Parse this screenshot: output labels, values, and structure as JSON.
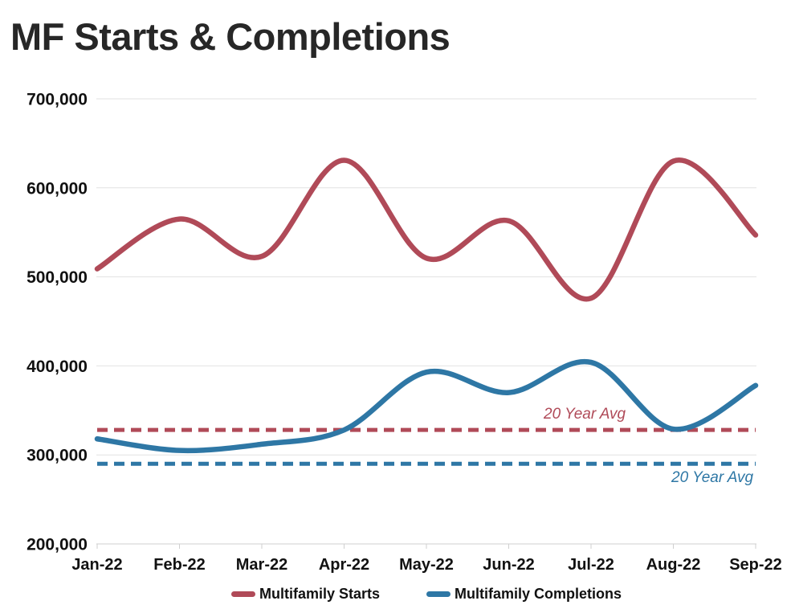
{
  "title": "MF Starts & Completions",
  "chart_data": {
    "type": "line",
    "title": "MF Starts & Completions",
    "categories": [
      "Jan-22",
      "Feb-22",
      "Mar-22",
      "Apr-22",
      "May-22",
      "Jun-22",
      "Jul-22",
      "Aug-22",
      "Sep-22"
    ],
    "series": [
      {
        "name": "Multifamily Starts",
        "color": "#b04a58",
        "values": [
          509000,
          565000,
          523000,
          631000,
          521000,
          563000,
          476000,
          630000,
          547000
        ]
      },
      {
        "name": "Multifamily Completions",
        "color": "#2e77a5",
        "values": [
          318000,
          305000,
          312000,
          328000,
          393000,
          370000,
          404000,
          329000,
          378000
        ]
      }
    ],
    "reference_lines": [
      {
        "label": "20 Year Avg",
        "value": 328000,
        "color": "#b04a58",
        "series": "Multifamily Starts"
      },
      {
        "label": "20 Year Avg",
        "value": 290000,
        "color": "#2e77a5",
        "series": "Multifamily Completions"
      }
    ],
    "ylim": [
      200000,
      700000
    ],
    "ytick_step": 100000,
    "ytick_labels": [
      "200,000",
      "300,000",
      "400,000",
      "500,000",
      "600,000",
      "700,000"
    ],
    "xlabel": "",
    "ylabel": "",
    "grid": "horizontal",
    "legend_position": "bottom",
    "line_style": "smooth"
  }
}
